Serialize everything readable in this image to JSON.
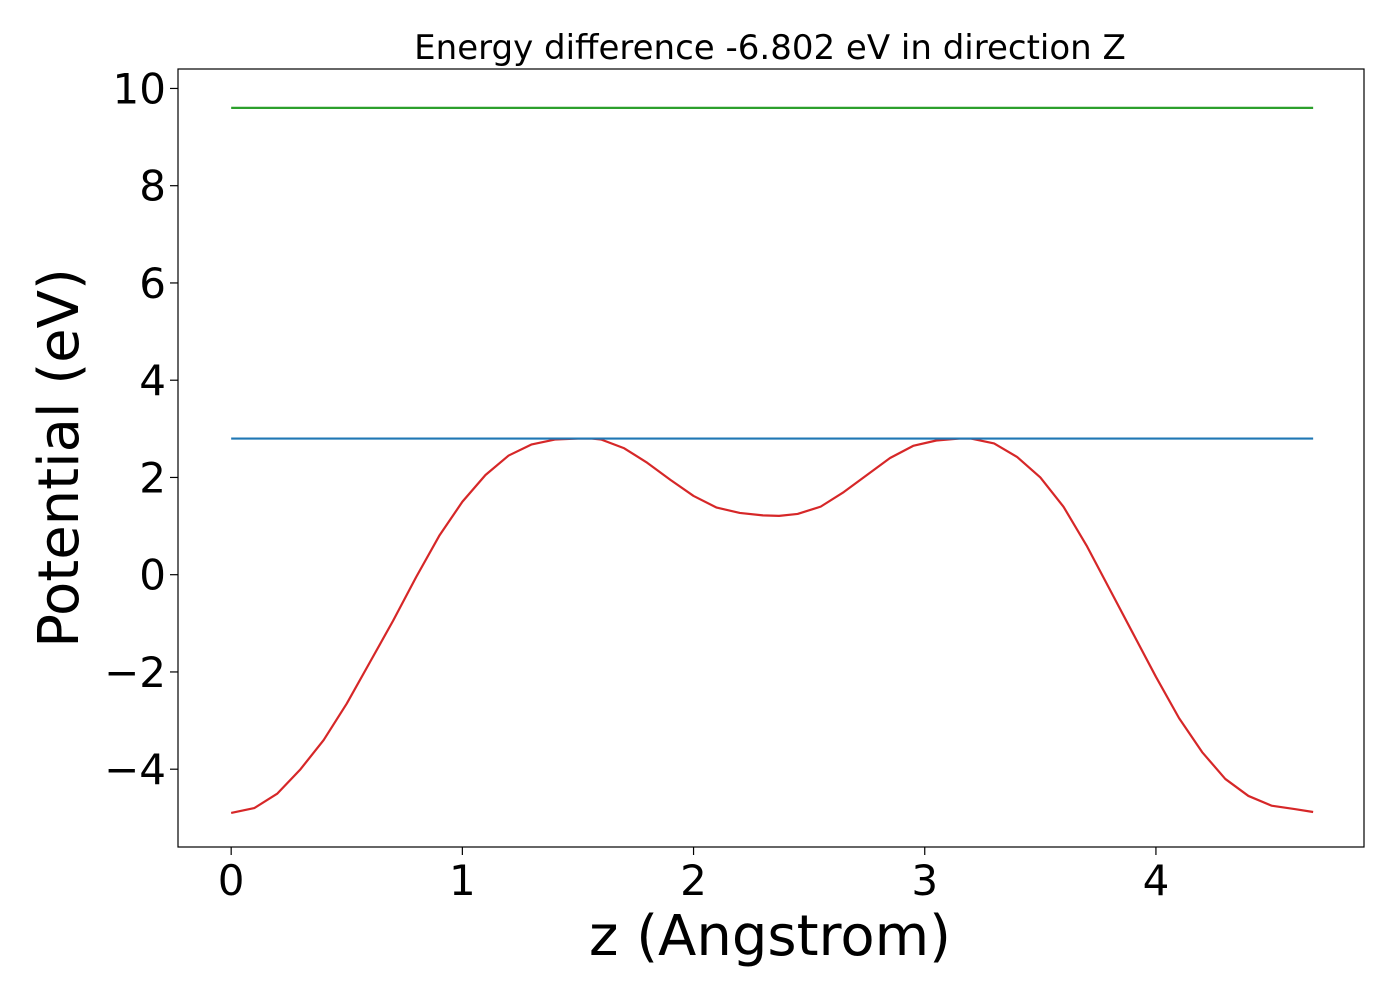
{
  "chart_data": {
    "type": "line",
    "title": "Energy difference -6.802 eV in direction Z",
    "xlabel": "z (Angstrom)",
    "ylabel": "Potential (eV)",
    "xlim": [
      -0.23,
      4.9
    ],
    "ylim": [
      -5.6,
      10.4
    ],
    "grid": false,
    "x_ticks": [
      0,
      1,
      2,
      3,
      4
    ],
    "y_ticks": [
      -4,
      -2,
      0,
      2,
      4,
      6,
      8,
      10
    ],
    "x_tick_labels": [
      "0",
      "1",
      "2",
      "3",
      "4"
    ],
    "y_tick_labels": [
      "−4",
      "−2",
      "0",
      "2",
      "4",
      "6",
      "8",
      "10"
    ],
    "series": [
      {
        "color": "#d62728",
        "x": [
          0.0,
          0.1,
          0.2,
          0.3,
          0.4,
          0.5,
          0.6,
          0.7,
          0.8,
          0.9,
          1.0,
          1.1,
          1.2,
          1.3,
          1.4,
          1.5,
          1.56,
          1.6,
          1.7,
          1.8,
          1.9,
          2.0,
          2.1,
          2.2,
          2.3,
          2.37,
          2.45,
          2.55,
          2.65,
          2.75,
          2.85,
          2.95,
          3.05,
          3.15,
          3.2,
          3.3,
          3.4,
          3.5,
          3.6,
          3.7,
          3.8,
          3.9,
          4.0,
          4.1,
          4.2,
          4.3,
          4.4,
          4.5,
          4.6,
          4.68
        ],
        "y": [
          -4.9,
          -4.8,
          -4.5,
          -4.0,
          -3.4,
          -2.65,
          -1.8,
          -0.95,
          -0.05,
          0.8,
          1.5,
          2.05,
          2.45,
          2.68,
          2.78,
          2.8,
          2.8,
          2.78,
          2.6,
          2.3,
          1.95,
          1.62,
          1.38,
          1.27,
          1.22,
          1.21,
          1.25,
          1.4,
          1.7,
          2.05,
          2.4,
          2.65,
          2.76,
          2.8,
          2.8,
          2.7,
          2.42,
          2.0,
          1.4,
          0.6,
          -0.3,
          -1.2,
          -2.1,
          -2.95,
          -3.65,
          -4.2,
          -4.55,
          -4.75,
          -4.82,
          -4.88
        ]
      },
      {
        "color": "#1f77b4",
        "x": [
          0.0,
          4.68
        ],
        "y": [
          2.8,
          2.8
        ]
      },
      {
        "color": "#2ca02c",
        "x": [
          0.0,
          4.68
        ],
        "y": [
          9.6,
          9.6
        ]
      }
    ]
  }
}
